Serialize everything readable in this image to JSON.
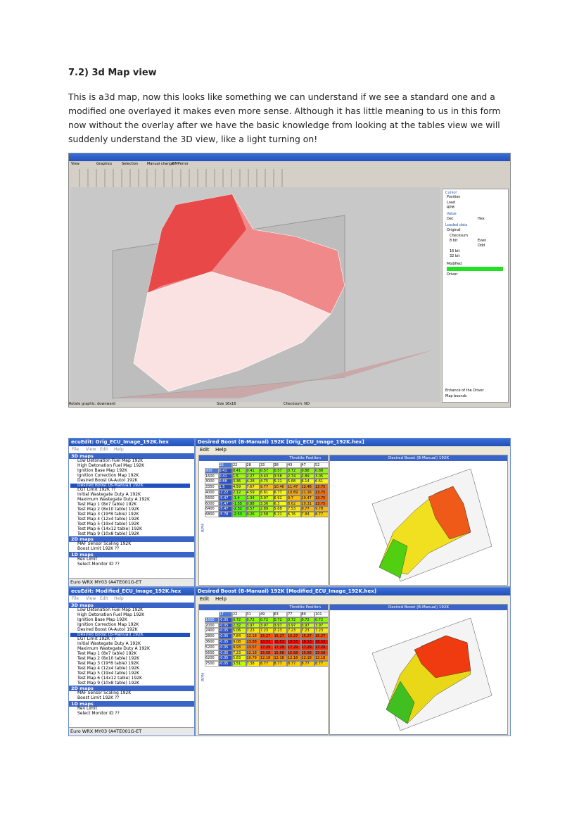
{
  "heading": "7.2) 3d Map view",
  "paragraph": [
    "This is a3d map, now this looks like something we can understand if we see a standard one and a",
    "modified one overlayed it makes even more sense. Although it has little meaning to us in this form",
    "now without the overlay after we have the basic knowledge from looking at the tables view we will",
    "suddenly understand the 3D view, like a light turning on!"
  ],
  "winols": {
    "menu": [
      "View",
      "Graphics",
      "Selection",
      "Manual change",
      "BMPerror"
    ],
    "sidebar": [
      "Cursor",
      "Position",
      "Load",
      "RPM",
      "Value",
      "Dec",
      "Hex",
      "Loaded data",
      "Original",
      "Checksum",
      "8 bit",
      "Even",
      "Odd",
      "16 bit",
      "32 bit",
      "Modified",
      "Driver"
    ],
    "options": [
      "Enhance of the Driver",
      "Map bounds"
    ],
    "status": [
      "Rotate graphic: downward",
      "Size 16x16",
      "Checksum: NO"
    ]
  },
  "ecuedit": {
    "groups": [
      {
        "name": "3D maps",
        "items": [
          "Low Detonation Fuel Map 192K",
          "High Detonation Fuel Map 192K",
          "Ignition Base Map 192K",
          "Ignition Correction Map 192K",
          "Desired Boost (A-Auto) 192K",
          "Desired Boost (B-Manual) 192K",
          "EGT Limit 192K ??",
          "Initial Wastegate Duty A 192K",
          "Maximum Wastegate Duty A 192K",
          "Test Map 1 (8x7 table) 192K",
          "Test Map 2 (8x10 table) 192K",
          "Test Map 3 (19*8 table) 192K",
          "Test Map 4 (12x4 table) 192K",
          "Test Map 5 (19x4 table) 192K",
          "Test Map 6 (14x12 table) 192K",
          "Test Map 9 (10x8 table) 192K"
        ]
      },
      {
        "name": "2D maps",
        "items": [
          "MAF Sensor Scaling 192K",
          "Boost Limit 192K ??"
        ]
      },
      {
        "name": "1D maps",
        "items": [
          "Rev Limit",
          "Select Monitor ID ??"
        ]
      }
    ],
    "list_menu": [
      "File",
      "View",
      "Edit",
      "Help"
    ],
    "map_menu": [
      "Edit",
      "Help"
    ],
    "footer": "Euro WRX MY03 (A4TE001G-ET",
    "x_axis": "Throttle Position",
    "y_axis": "RPM",
    "chart_title": "Desired Boost (B-Manual) 192K",
    "windows": [
      {
        "list_title": "ecuEdit: Orig_ECU_Image_192K.hex",
        "map_title": "Desired Boost (B-Manual) 192K [Orig_ECU_Image_192K.hex]",
        "columns": [
          16,
          22,
          28,
          33,
          38,
          43,
          47,
          52
        ],
        "rows": [
          {
            "rpm": 800,
            "values": [
              0.41,
              0.41,
              0.41,
              0.57,
              0.57,
              0.72,
              0.88,
              0.88
            ]
          },
          {
            "rpm": 1600,
            "values": [
              0.41,
              1.5,
              2.27,
              3.43,
              3.58,
              2.74,
              2.89,
              3.05
            ]
          },
          {
            "rpm": 3000,
            "values": [
              0.88,
              3.36,
              4.28,
              4.75,
              5.21,
              5.68,
              6.14,
              6.61
            ]
          },
          {
            "rpm": 3350,
            "values": [
              1.5,
              4.59,
              7.67,
              9.77,
              10.46,
              11.47,
              12.48,
              13.75
            ]
          },
          {
            "rpm": 4000,
            "values": [
              -2.22,
              2.12,
              4.59,
              6.61,
              6.77,
              10.69,
              11.16,
              13.75
            ]
          },
          {
            "rpm": 5600,
            "values": [
              -5.47,
              -1.4,
              1.34,
              3.97,
              6.92,
              9.7,
              10.47,
              13.75
            ]
          },
          {
            "rpm": 6000,
            "values": [
              -5.47,
              -1.55,
              0.88,
              3.36,
              6.3,
              8.62,
              10.31,
              13.75
            ]
          },
          {
            "rpm": 6400,
            "values": [
              -5.47,
              -2.32,
              0.57,
              2.89,
              5.68,
              7.53,
              9.77,
              9.78
            ]
          },
          {
            "rpm": 6800,
            "values": [
              -5.78,
              -2.53,
              0.26,
              2.58,
              5.21,
              6.76,
              7.84,
              8.77
            ]
          }
        ]
      },
      {
        "list_title": "ecuEdit: Modified_ECU_Image_192K.hex",
        "map_title": "Desired Boost (B-Manual) 192K [Modified_ECU_Image_192K.hex]",
        "columns": [
          17,
          22,
          31,
          49,
          63,
          77,
          89,
          101
        ],
        "rows": [
          {
            "rpm": 1600,
            "values": [
              -0.05,
              0.72,
              0.72,
              0.72,
              0.72,
              0.72,
              0.72,
              0.72
            ]
          },
          {
            "rpm": 2000,
            "values": [
              -0.05,
              2.32,
              3.97,
              3.97,
              3.97,
              3.97,
              3.97,
              3.97
            ]
          },
          {
            "rpm": 2400,
            "values": [
              -0.05,
              5.06,
              7.23,
              7.23,
              7.23,
              7.23,
              7.23,
              7.23
            ]
          },
          {
            "rpm": 2800,
            "values": [
              -0.05,
              7.84,
              12.18,
              15.27,
              15.27,
              15.27,
              15.27,
              15.27
            ]
          },
          {
            "rpm": 3600,
            "values": [
              -0.05,
              9.08,
              13.88,
              18.53,
              18.53,
              18.53,
              18.53,
              18.53
            ]
          },
          {
            "rpm": 5200,
            "values": [
              -0.05,
              9.93,
              13.57,
              17.29,
              17.29,
              17.29,
              17.29,
              17.29
            ]
          },
          {
            "rpm": 5600,
            "values": [
              -0.05,
              7.23,
              12.18,
              15.58,
              15.58,
              15.58,
              15.58,
              15.58
            ]
          },
          {
            "rpm": 6200,
            "values": [
              -0.05,
              5.83,
              10.79,
              12.18,
              12.18,
              12.18,
              12.18,
              12.18
            ]
          },
          {
            "rpm": 7500,
            "values": [
              -0.05,
              3.51,
              7.38,
              8.77,
              8.77,
              8.77,
              8.77,
              8.77
            ]
          }
        ]
      }
    ]
  }
}
